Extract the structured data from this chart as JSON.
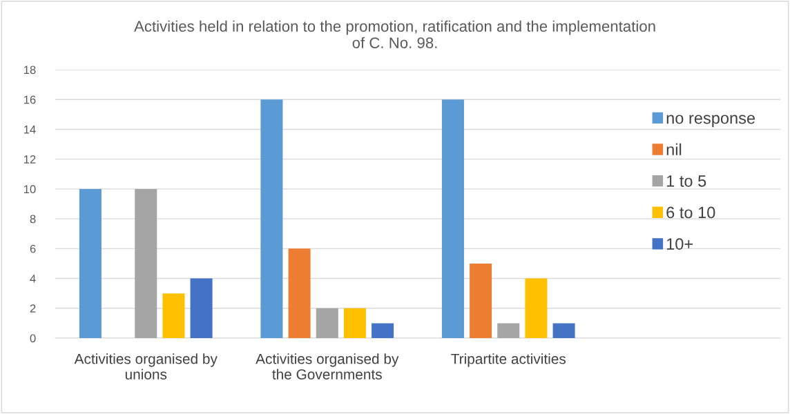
{
  "chart_data": {
    "type": "bar",
    "title": "Activities held in relation to the promotion, ratification and the implementation\nof C. No. 98.",
    "categories": [
      "Activities organised by\nunions",
      "Activities organised by\nthe Governments",
      "Tripartite activities",
      null
    ],
    "series": [
      {
        "name": "no response",
        "color": "#5b9bd5",
        "values": [
          10,
          16,
          16,
          null
        ]
      },
      {
        "name": "nil",
        "color": "#ed7d31",
        "values": [
          0,
          6,
          5,
          null
        ]
      },
      {
        "name": "1 to 5",
        "color": "#a5a5a5",
        "values": [
          10,
          2,
          1,
          null
        ]
      },
      {
        "name": "6 to 10",
        "color": "#ffc000",
        "values": [
          3,
          2,
          4,
          null
        ]
      },
      {
        "name": "10+",
        "color": "#4472c4",
        "values": [
          4,
          1,
          1,
          null
        ]
      }
    ],
    "ylim": [
      0,
      18
    ],
    "yticks": [
      0,
      2,
      4,
      6,
      8,
      10,
      12,
      14,
      16,
      18
    ],
    "grid": "y",
    "legend": "right"
  }
}
